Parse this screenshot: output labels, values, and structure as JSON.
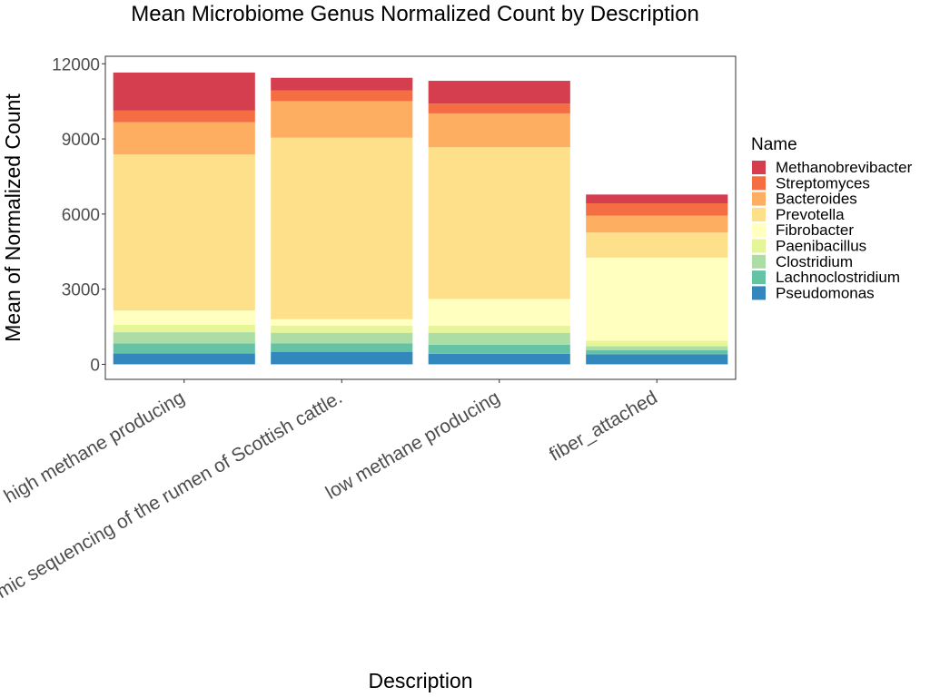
{
  "chart_data": {
    "type": "bar",
    "stacked": true,
    "title": "Mean Microbiome Genus Normalized Count by Description",
    "xlabel": "Description",
    "ylabel": "Mean of Normalized Count",
    "ylim": [
      -600,
      12300
    ],
    "yticks": [
      0,
      3000,
      6000,
      9000,
      12000
    ],
    "grid": false,
    "legend_position": "right",
    "legend_title": "Name",
    "categories": [
      "high methane producing",
      "Metagenomic sequencing of the rumen of Scottish cattle.",
      "low methane producing",
      "fiber_attached"
    ],
    "series": [
      {
        "name": "Pseudomonas",
        "color": "#3288bd",
        "values": [
          430,
          500,
          420,
          400
        ]
      },
      {
        "name": "Lachnoclostridium",
        "color": "#66c2a5",
        "values": [
          400,
          340,
          360,
          170
        ]
      },
      {
        "name": "Clostridium",
        "color": "#abdda4",
        "values": [
          450,
          420,
          480,
          150
        ]
      },
      {
        "name": "Paenibacillus",
        "color": "#e6f598",
        "values": [
          300,
          280,
          280,
          230
        ]
      },
      {
        "name": "Fibrobacter",
        "color": "#ffffbf",
        "values": [
          570,
          260,
          1070,
          3310
        ]
      },
      {
        "name": "Prevotella",
        "color": "#fee08b",
        "values": [
          6230,
          7250,
          6060,
          1000
        ]
      },
      {
        "name": "Bacteroides",
        "color": "#fdae61",
        "values": [
          1290,
          1460,
          1350,
          680
        ]
      },
      {
        "name": "Streptomyces",
        "color": "#f46d43",
        "values": [
          460,
          430,
          390,
          490
        ]
      },
      {
        "name": "Methanobrevibacter",
        "color": "#d53e4f",
        "values": [
          1520,
          500,
          910,
          350
        ]
      }
    ]
  }
}
